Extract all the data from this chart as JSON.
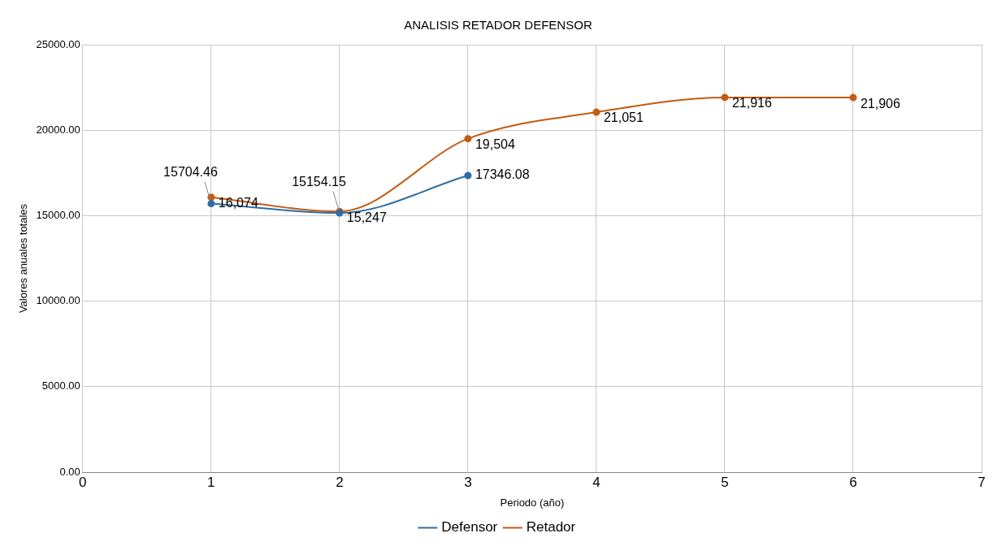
{
  "chart_data": {
    "type": "line",
    "title": "ANALISIS RETADOR DEFENSOR",
    "xlabel": "Periodo (año)",
    "ylabel": "Valores anuales totales",
    "xlim": [
      0,
      7
    ],
    "xticks": [
      0,
      1,
      2,
      3,
      4,
      5,
      6,
      7
    ],
    "ylim": [
      0,
      25000
    ],
    "yticks": [
      {
        "value": 0,
        "label": "0.00"
      },
      {
        "value": 5000,
        "label": "5000.00"
      },
      {
        "value": 10000,
        "label": "10000.00"
      },
      {
        "value": 15000,
        "label": "15000.00"
      },
      {
        "value": 20000,
        "label": "20000.00"
      },
      {
        "value": 25000,
        "label": "25000.00"
      }
    ],
    "series": [
      {
        "name": "Defensor",
        "color": "#2e6da4",
        "x": [
          1,
          2,
          3
        ],
        "values": [
          15704.46,
          15154.15,
          17346.08
        ],
        "value_labels": [
          "15704.46",
          "15154.15",
          "17346.08"
        ]
      },
      {
        "name": "Retador",
        "color": "#c55a11",
        "x": [
          1,
          2,
          3,
          4,
          5,
          6
        ],
        "values": [
          16074,
          15247,
          19504,
          21051,
          21916,
          21906
        ],
        "value_labels": [
          "16,074",
          "15,247",
          "19,504",
          "21,051",
          "21,916",
          "21,906"
        ]
      }
    ],
    "grid": true,
    "legend": "bottom",
    "marker": "circle",
    "line_style": "solid"
  }
}
